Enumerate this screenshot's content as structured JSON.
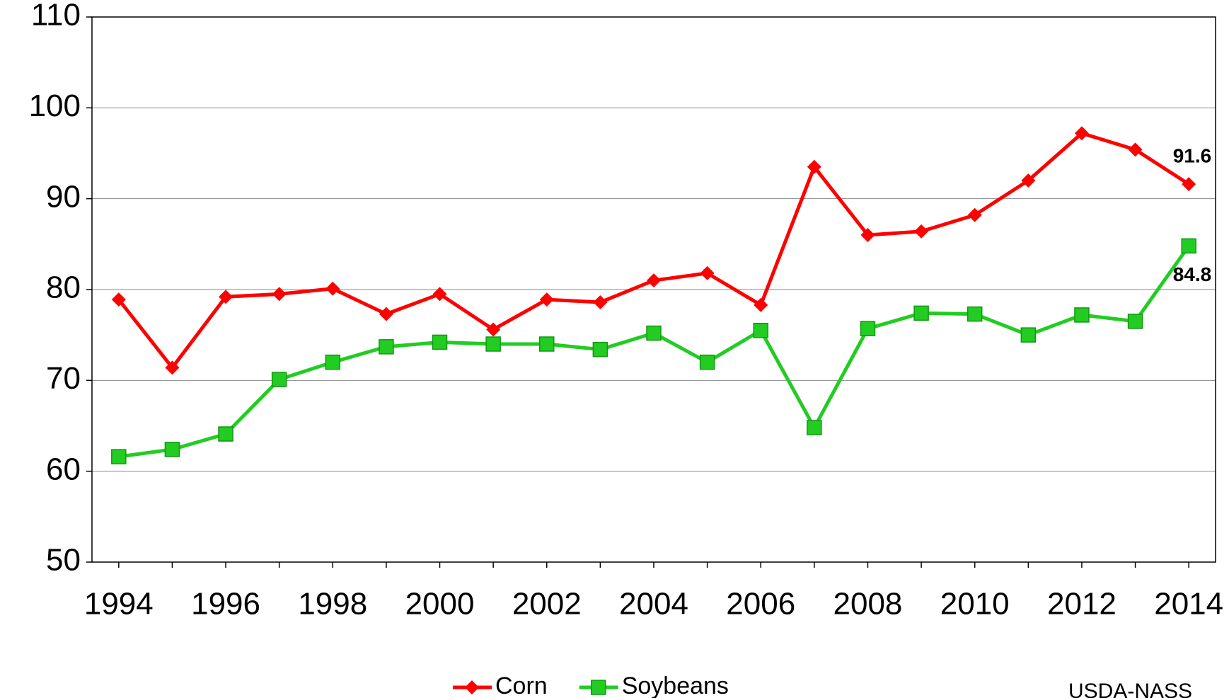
{
  "chart_data": {
    "type": "line",
    "categories": [
      "1994",
      null,
      "1996",
      null,
      "1998",
      null,
      "2000",
      null,
      "2002",
      null,
      "2004",
      null,
      "2006",
      null,
      "2008",
      null,
      "2010",
      null,
      "2012",
      null,
      "2014"
    ],
    "series": [
      {
        "name": "Corn",
        "color": "#ff0000",
        "marker": "diamond",
        "values": [
          78.9,
          71.4,
          79.2,
          79.5,
          80.1,
          77.3,
          79.5,
          75.6,
          78.9,
          78.6,
          81.0,
          81.8,
          78.3,
          93.5,
          86.0,
          86.4,
          88.2,
          92.0,
          97.2,
          95.4,
          91.6
        ]
      },
      {
        "name": "Soybeans",
        "color": "#22cc22",
        "marker": "square",
        "values": [
          61.6,
          62.4,
          64.1,
          70.1,
          72.0,
          73.7,
          74.2,
          74.0,
          74.0,
          73.4,
          75.2,
          72.0,
          75.5,
          64.8,
          75.7,
          77.4,
          77.3,
          75.0,
          77.2,
          76.5,
          84.8
        ]
      }
    ],
    "ylim": [
      50,
      110
    ],
    "yticks": [
      50,
      60,
      70,
      80,
      90,
      100,
      110
    ],
    "grid": true,
    "legend": "bottom",
    "source": "USDA-NASS"
  }
}
